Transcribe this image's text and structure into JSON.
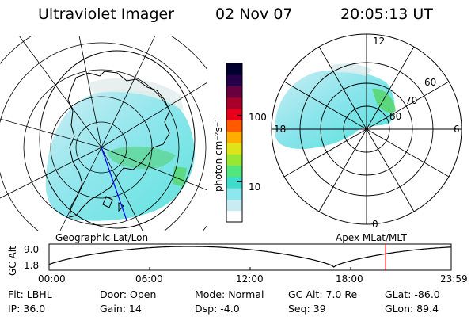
{
  "header": {
    "title": "Ultraviolet Imager",
    "date": "02 Nov 07",
    "time": "20:05:13 UT"
  },
  "geo_panel": {
    "label": "Geographic Lat/Lon"
  },
  "apex_panel": {
    "label": "Apex MLat/MLT",
    "mlt_labels": {
      "top": "12",
      "left": "18",
      "right": "6",
      "bottom": "0"
    },
    "lat_labels": [
      "60",
      "70",
      "80"
    ]
  },
  "colorbar": {
    "unit": "photon cm⁻²s⁻¹",
    "scale": "log",
    "range": [
      2.5,
      600
    ],
    "ticks": [
      {
        "value": 100,
        "label": "100"
      },
      {
        "value": 10,
        "label": "10"
      }
    ],
    "colors": [
      "#ffffff",
      "#c9ecf2",
      "#8ee6ee",
      "#3fdccc",
      "#52e67c",
      "#9ae634",
      "#e0e21a",
      "#ffad00",
      "#ff5a00",
      "#e8001a",
      "#a8002a",
      "#680040",
      "#250048",
      "#000030"
    ]
  },
  "orbit_plot": {
    "ylabel": "GC Alt",
    "yticks": [
      "9.0",
      "1.8"
    ],
    "xticks": [
      "00:00",
      "06:00",
      "12:00",
      "18:00",
      "23:59"
    ],
    "current_hour": 20.09,
    "marker_color": "#e00000"
  },
  "status": {
    "row1": [
      {
        "key": "flt",
        "text": "Flt: LBHL"
      },
      {
        "key": "door",
        "text": "Door: Open"
      },
      {
        "key": "mode",
        "text": "Mode: Normal"
      },
      {
        "key": "gcalt",
        "text": "GC Alt: 7.0 Re"
      },
      {
        "key": "glat",
        "text": "GLat: -86.0"
      }
    ],
    "row2": [
      {
        "key": "ip",
        "text": "IP: 36.0"
      },
      {
        "key": "gain",
        "text": "Gain: 14"
      },
      {
        "key": "dsp",
        "text": "Dsp:   -4.0"
      },
      {
        "key": "seq",
        "text": "Seq: 39"
      },
      {
        "key": "glon",
        "text": "GLon:  89.4"
      }
    ]
  }
}
